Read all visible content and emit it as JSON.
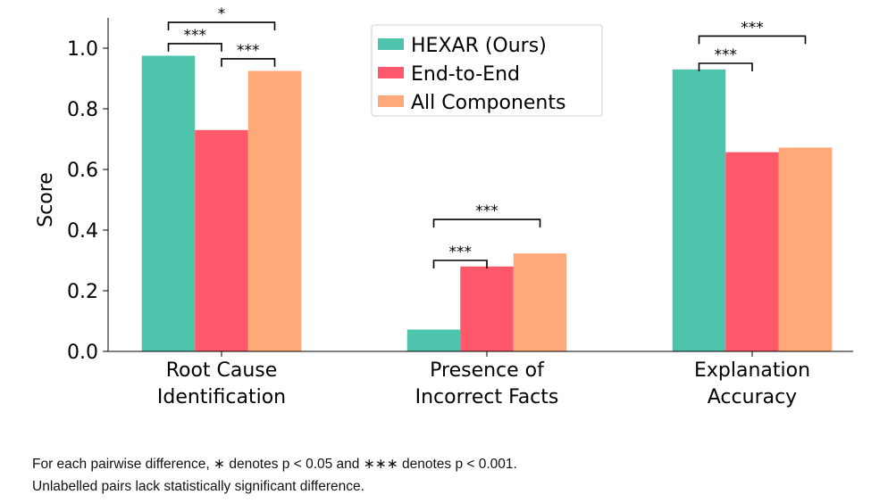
{
  "chart_data": {
    "type": "bar",
    "categories": [
      [
        "Root Cause",
        "Identification"
      ],
      [
        "Presence of",
        "Incorrect Facts"
      ],
      [
        "Explanation",
        "Accuracy"
      ]
    ],
    "series": [
      {
        "name": "HEXAR (Ours)",
        "color": "#4fc4ad",
        "values": [
          0.975,
          0.072,
          0.93
        ]
      },
      {
        "name": "End-to-End",
        "color": "#ff586b",
        "values": [
          0.73,
          0.28,
          0.657
        ]
      },
      {
        "name": "All Components",
        "color": "#ffa87a",
        "values": [
          0.925,
          0.323,
          0.672
        ]
      }
    ],
    "ylabel": "Score",
    "ylim": [
      0,
      1.1
    ],
    "yticks": [
      0.0,
      0.2,
      0.4,
      0.6,
      0.8,
      1.0
    ],
    "ytick_labels": [
      "0.0",
      "0.2",
      "0.4",
      "0.6",
      "0.8",
      "1.0"
    ],
    "legend_position": "top-center",
    "grid": false,
    "significance": [
      {
        "category": 0,
        "from": 0,
        "to": 1,
        "label": "***",
        "y": 1.015
      },
      {
        "category": 0,
        "from": 1,
        "to": 2,
        "label": "***",
        "y": 0.965
      },
      {
        "category": 0,
        "from": 0,
        "to": 2,
        "label": "*",
        "y": 1.085
      },
      {
        "category": 1,
        "from": 0,
        "to": 1,
        "label": "***",
        "y": 0.3
      },
      {
        "category": 1,
        "from": 0,
        "to": 2,
        "label": "***",
        "y": 0.435
      },
      {
        "category": 2,
        "from": 0,
        "to": 1,
        "label": "***",
        "y": 0.95
      },
      {
        "category": 2,
        "from": 0,
        "to": 2,
        "label": "***",
        "y": 1.04
      }
    ]
  },
  "caption": {
    "line1": "For each pairwise difference, ∗ denotes p < 0.05 and ∗∗∗ denotes p < 0.001.",
    "line2": "Unlabelled pairs lack statistically significant difference."
  }
}
